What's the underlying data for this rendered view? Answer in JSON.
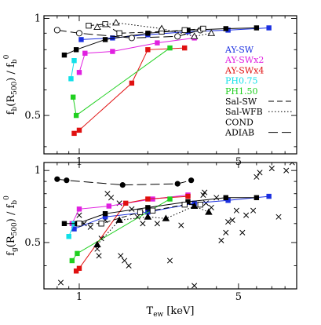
{
  "chart_data": [
    {
      "type": "line",
      "panel": "top",
      "xscale": "log",
      "xlim": [
        0.7,
        9.0
      ],
      "ylim": [
        0.38,
        1.02
      ],
      "xticks": [
        1,
        5
      ],
      "yticks": [
        0.5,
        1
      ],
      "xlabel": "",
      "ylabel": "f_b(R_500) / f_b^0",
      "legend": {
        "placement": "right",
        "entries": [
          {
            "label": "AY-SW",
            "color": "#1a2fe0",
            "style": "text"
          },
          {
            "label": "AY-SWx2",
            "color": "#e020e0",
            "style": "text"
          },
          {
            "label": "AY-SWx4",
            "color": "#e01010",
            "style": "text"
          },
          {
            "label": "PH0.75",
            "color": "#10e0e8",
            "style": "text"
          },
          {
            "label": "PH1.50",
            "color": "#20d020",
            "style": "text"
          },
          {
            "label": "Sal-SW",
            "color": "#000000",
            "style": "dashed"
          },
          {
            "label": "Sal-WFB",
            "color": "#000000",
            "style": "dotted"
          },
          {
            "label": "COND",
            "color": "#000000",
            "style": "none"
          },
          {
            "label": "ADIAB",
            "color": "#000000",
            "style": "longdash"
          }
        ]
      },
      "series": [
        {
          "name": "AY-SW",
          "color": "#1a2fe0",
          "line": "solid",
          "marker": "square",
          "x": [
            1.02,
            1.4,
            2.0,
            3.0,
            4.5,
            6.8
          ],
          "y": [
            0.86,
            0.87,
            0.89,
            0.91,
            0.92,
            0.935
          ]
        },
        {
          "name": "AY-SWx2",
          "color": "#e020e0",
          "line": "solid",
          "marker": "square",
          "x": [
            1.0,
            1.06,
            1.4,
            2.2,
            3.2
          ],
          "y": [
            0.68,
            0.78,
            0.79,
            0.84,
            0.87
          ]
        },
        {
          "name": "AY-SWx4",
          "color": "#e01010",
          "line": "solid",
          "marker": "square",
          "x": [
            0.95,
            1.0,
            1.7,
            2.0,
            2.9
          ],
          "y": [
            0.44,
            0.45,
            0.63,
            0.8,
            0.81
          ]
        },
        {
          "name": "PH0.75",
          "color": "#10e0e8",
          "line": "solid",
          "marker": "square",
          "x": [
            0.92,
            0.95
          ],
          "y": [
            0.65,
            0.74
          ]
        },
        {
          "name": "PH1.50",
          "color": "#20d020",
          "line": "solid",
          "marker": "square",
          "x": [
            0.94,
            0.97,
            2.5
          ],
          "y": [
            0.57,
            0.5,
            0.81
          ]
        },
        {
          "name": "COND",
          "color": "#000000",
          "line": "solid",
          "marker": "square",
          "x": [
            0.86,
            0.97,
            1.3,
            2.0,
            3.0,
            4.4,
            6.0
          ],
          "y": [
            0.77,
            0.8,
            0.86,
            0.9,
            0.92,
            0.93,
            0.935
          ]
        },
        {
          "name": "ADIAB",
          "color": "#000000",
          "line": "longdash",
          "marker": "circle-open",
          "x": [
            0.8,
            1.0,
            1.7,
            2.7,
            3.4
          ],
          "y": [
            0.92,
            0.9,
            0.87,
            0.88,
            0.92
          ]
        },
        {
          "name": "Sal-SW",
          "color": "#000000",
          "line": "dashed",
          "marker": "square-open",
          "x": [
            1.1,
            1.3,
            1.5,
            2.3,
            2.9,
            3.5
          ],
          "y": [
            0.95,
            0.96,
            0.9,
            0.91,
            0.92,
            0.93
          ]
        },
        {
          "name": "Sal-WFB",
          "color": "#000000",
          "line": "dotted",
          "marker": "triangle-open",
          "x": [
            1.2,
            1.45,
            2.3,
            3.2,
            3.8
          ],
          "y": [
            0.94,
            0.97,
            0.93,
            0.88,
            0.9
          ]
        }
      ]
    },
    {
      "type": "line",
      "panel": "bottom",
      "xscale": "log",
      "xlim": [
        0.7,
        9.0
      ],
      "ylim": [
        0.32,
        1.08
      ],
      "xticks": [
        1,
        5
      ],
      "yticks": [
        0.5,
        1
      ],
      "xlabel": "T_ew [keV]",
      "ylabel": "f_g(R_500) / f_b^0",
      "series": [
        {
          "name": "AY-SW",
          "color": "#1a2fe0",
          "line": "solid",
          "marker": "square",
          "x": [
            0.95,
            1.3,
            2.0,
            3.2,
            4.5,
            6.8
          ],
          "y": [
            0.57,
            0.64,
            0.67,
            0.73,
            0.75,
            0.78
          ]
        },
        {
          "name": "AY-SWx2",
          "color": "#e020e0",
          "line": "solid",
          "marker": "square",
          "x": [
            0.93,
            1.0,
            1.35,
            2.1,
            3.0
          ],
          "y": [
            0.6,
            0.69,
            0.71,
            0.76,
            0.79
          ]
        },
        {
          "name": "AY-SWx4",
          "color": "#e01010",
          "line": "solid",
          "marker": "square",
          "x": [
            0.97,
            1.0,
            1.6,
            2.0,
            3.0
          ],
          "y": [
            0.38,
            0.39,
            0.73,
            0.76,
            0.78
          ]
        },
        {
          "name": "PH0.75",
          "color": "#10e0e8",
          "line": "solid",
          "marker": "square",
          "x": [
            0.9,
            0.95
          ],
          "y": [
            0.53,
            0.6
          ]
        },
        {
          "name": "PH1.50",
          "color": "#20d020",
          "line": "solid",
          "marker": "square",
          "x": [
            0.93,
            0.98,
            2.5
          ],
          "y": [
            0.42,
            0.45,
            0.76
          ]
        },
        {
          "name": "COND",
          "color": "#000000",
          "line": "solid",
          "marker": "square",
          "x": [
            0.86,
            0.98,
            1.3,
            2.0,
            3.0,
            4.4,
            6.0
          ],
          "y": [
            0.6,
            0.6,
            0.66,
            0.7,
            0.74,
            0.77,
            0.77
          ]
        },
        {
          "name": "ADIAB",
          "color": "#000000",
          "line": "longdash",
          "marker": "circle-filled",
          "x": [
            0.8,
            0.88,
            1.55,
            2.7,
            3.1
          ],
          "y": [
            0.92,
            0.91,
            0.87,
            0.88,
            0.91
          ]
        },
        {
          "name": "Sal-SW",
          "color": "#000000",
          "line": "dashed",
          "marker": "square-open",
          "x": [
            1.0,
            1.25,
            1.85,
            2.1,
            2.9,
            3.4
          ],
          "y": [
            0.6,
            0.6,
            0.67,
            0.68,
            0.72,
            0.72
          ]
        },
        {
          "name": "Sal-WFB",
          "color": "#000000",
          "line": "dotted",
          "marker": "triangle-filled",
          "x": [
            1.2,
            1.5,
            2.0,
            2.4,
            3.2,
            3.7
          ],
          "y": [
            0.49,
            0.62,
            0.64,
            0.63,
            0.71,
            0.67
          ]
        }
      ],
      "observations": {
        "marker": "cross",
        "color": "#000000",
        "x": [
          0.83,
          1.0,
          1.05,
          1.12,
          1.2,
          1.22,
          1.25,
          1.3,
          1.33,
          1.38,
          1.5,
          1.52,
          1.58,
          1.65,
          1.7,
          1.8,
          1.9,
          2.2,
          2.5,
          2.8,
          3.2,
          3.5,
          3.55,
          3.6,
          3.8,
          4.0,
          4.2,
          4.4,
          4.5,
          4.7,
          4.9,
          5.2,
          5.4,
          5.8,
          6.0,
          6.2,
          7.0,
          7.5,
          8.1,
          8.6
        ],
        "y": [
          0.34,
          0.65,
          0.6,
          0.58,
          0.47,
          0.44,
          0.52,
          0.62,
          0.8,
          0.77,
          0.73,
          0.44,
          0.42,
          0.4,
          0.69,
          0.64,
          0.6,
          0.6,
          0.42,
          0.59,
          0.33,
          0.79,
          0.81,
          0.73,
          0.7,
          0.77,
          0.51,
          0.55,
          0.61,
          0.62,
          0.68,
          0.55,
          0.65,
          0.68,
          0.94,
          0.98,
          1.02,
          0.64,
          1.0,
          1.08
        ]
      }
    }
  ]
}
